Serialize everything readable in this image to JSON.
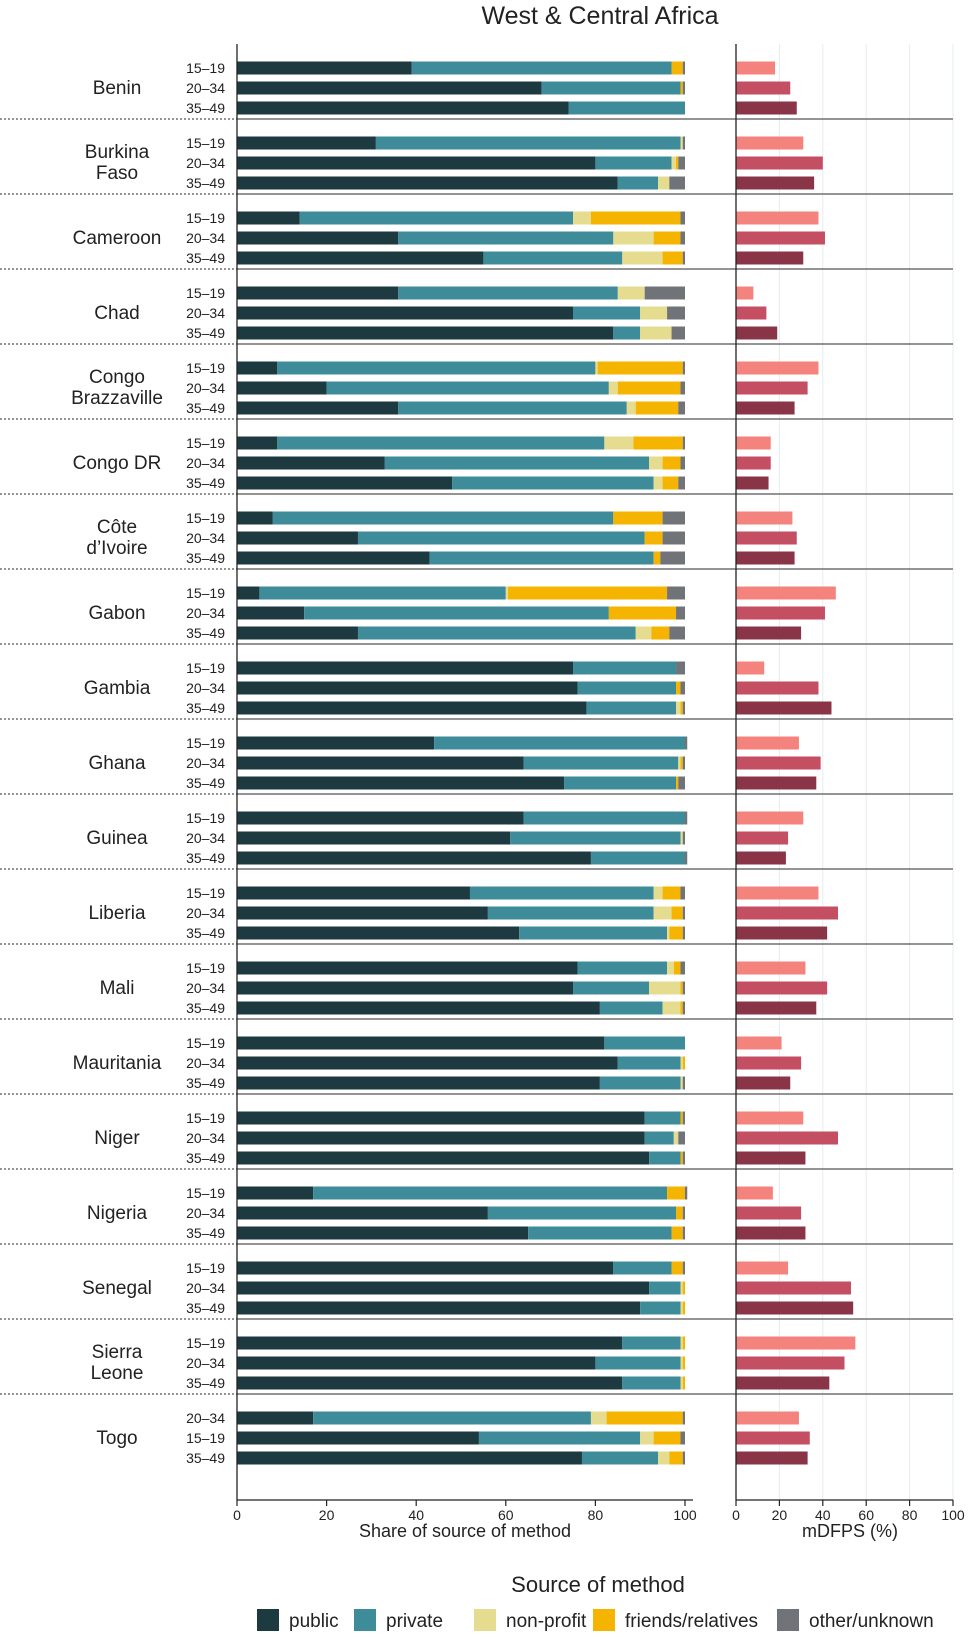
{
  "chart_data": {
    "type": "bar",
    "title": "West & Central Africa",
    "panels": {
      "left": {
        "xlabel": "Share of source of method",
        "xlim": [
          0,
          100
        ],
        "ticks": [
          0,
          20,
          40,
          60,
          80,
          100
        ]
      },
      "right": {
        "xlabel": "mDFPS (%)",
        "xlim": [
          0,
          100
        ],
        "ticks": [
          0,
          20,
          40,
          60,
          80,
          100
        ]
      }
    },
    "legend": {
      "title": "Source of method",
      "placement": "bottom",
      "items": [
        {
          "key": "public",
          "label": "public",
          "color": "#1c3a40"
        },
        {
          "key": "private",
          "label": "private",
          "color": "#3e8c9a"
        },
        {
          "key": "nonprofit",
          "label": "non-profit",
          "color": "#e6dc8f"
        },
        {
          "key": "friends",
          "label": "friends/relatives",
          "color": "#f5b400"
        },
        {
          "key": "other",
          "label": "other/unknown",
          "color": "#707478"
        }
      ]
    },
    "mdfps_colors": [
      "#f4837e",
      "#c44e62",
      "#8a3448"
    ],
    "countries": [
      {
        "name": "Benin",
        "groups": [
          {
            "age": "15–19",
            "public": 39,
            "private": 58,
            "nonprofit": 0,
            "friends": 2.5,
            "other": 0.5,
            "mdfps": 18
          },
          {
            "age": "20–34",
            "public": 68,
            "private": 31,
            "nonprofit": 0,
            "friends": 0.5,
            "other": 0.5,
            "mdfps": 25
          },
          {
            "age": "35–49",
            "public": 74,
            "private": 26,
            "nonprofit": 0,
            "friends": 0,
            "other": 0,
            "mdfps": 28
          }
        ]
      },
      {
        "name": "Burkina Faso",
        "groups": [
          {
            "age": "15–19",
            "public": 31,
            "private": 68,
            "nonprofit": 0.5,
            "friends": 0,
            "other": 0.5,
            "mdfps": 31
          },
          {
            "age": "20–34",
            "public": 80,
            "private": 17,
            "nonprofit": 1,
            "friends": 0.5,
            "other": 1.5,
            "mdfps": 40
          },
          {
            "age": "35–49",
            "public": 85,
            "private": 9,
            "nonprofit": 2.5,
            "friends": 0,
            "other": 3.5,
            "mdfps": 36
          }
        ]
      },
      {
        "name": "Cameroon",
        "groups": [
          {
            "age": "15–19",
            "public": 14,
            "private": 61,
            "nonprofit": 4,
            "friends": 20,
            "other": 1,
            "mdfps": 38
          },
          {
            "age": "20–34",
            "public": 36,
            "private": 48,
            "nonprofit": 9,
            "friends": 6,
            "other": 1,
            "mdfps": 41
          },
          {
            "age": "35–49",
            "public": 55,
            "private": 31,
            "nonprofit": 9,
            "friends": 4.5,
            "other": 0.5,
            "mdfps": 31
          }
        ]
      },
      {
        "name": "Chad",
        "groups": [
          {
            "age": "15–19",
            "public": 36,
            "private": 49,
            "nonprofit": 6,
            "friends": 0,
            "other": 9,
            "mdfps": 8
          },
          {
            "age": "20–34",
            "public": 75,
            "private": 15,
            "nonprofit": 6,
            "friends": 0,
            "other": 4,
            "mdfps": 14
          },
          {
            "age": "35–49",
            "public": 84,
            "private": 6,
            "nonprofit": 7,
            "friends": 0,
            "other": 3,
            "mdfps": 19
          }
        ]
      },
      {
        "name": "Congo Brazzaville",
        "groups": [
          {
            "age": "15–19",
            "public": 9,
            "private": 71,
            "nonprofit": 0.5,
            "friends": 19,
            "other": 0.5,
            "mdfps": 38
          },
          {
            "age": "20–34",
            "public": 20,
            "private": 63,
            "nonprofit": 2,
            "friends": 14,
            "other": 1,
            "mdfps": 33
          },
          {
            "age": "35–49",
            "public": 36,
            "private": 51,
            "nonprofit": 2,
            "friends": 9.5,
            "other": 1.5,
            "mdfps": 27
          }
        ]
      },
      {
        "name": "Congo DR",
        "groups": [
          {
            "age": "15–19",
            "public": 9,
            "private": 73,
            "nonprofit": 6.5,
            "friends": 11,
            "other": 0.5,
            "mdfps": 16
          },
          {
            "age": "20–34",
            "public": 33,
            "private": 59,
            "nonprofit": 3,
            "friends": 4,
            "other": 1,
            "mdfps": 16
          },
          {
            "age": "35–49",
            "public": 48,
            "private": 45,
            "nonprofit": 2,
            "friends": 3.5,
            "other": 1.5,
            "mdfps": 15
          }
        ]
      },
      {
        "name": "Côte d’Ivoire",
        "groups": [
          {
            "age": "15–19",
            "public": 8,
            "private": 76,
            "nonprofit": 0,
            "friends": 11,
            "other": 5,
            "mdfps": 26
          },
          {
            "age": "20–34",
            "public": 27,
            "private": 64,
            "nonprofit": 0,
            "friends": 4,
            "other": 5,
            "mdfps": 28
          },
          {
            "age": "35–49",
            "public": 43,
            "private": 50,
            "nonprofit": 0,
            "friends": 1.5,
            "other": 5.5,
            "mdfps": 27
          }
        ]
      },
      {
        "name": "Gabon",
        "groups": [
          {
            "age": "15–19",
            "public": 5,
            "private": 55,
            "nonprofit": 0.5,
            "friends": 35.5,
            "other": 4,
            "mdfps": 46
          },
          {
            "age": "20–34",
            "public": 15,
            "private": 68,
            "nonprofit": 0,
            "friends": 15,
            "other": 2,
            "mdfps": 41
          },
          {
            "age": "35–49",
            "public": 27,
            "private": 62,
            "nonprofit": 3.5,
            "friends": 4,
            "other": 3.5,
            "mdfps": 30
          }
        ]
      },
      {
        "name": "Gambia",
        "groups": [
          {
            "age": "15–19",
            "public": 75,
            "private": 23,
            "nonprofit": 0,
            "friends": 0,
            "other": 2,
            "mdfps": 13
          },
          {
            "age": "20–34",
            "public": 76,
            "private": 22,
            "nonprofit": 0,
            "friends": 1,
            "other": 1,
            "mdfps": 38
          },
          {
            "age": "35–49",
            "public": 78,
            "private": 20,
            "nonprofit": 1,
            "friends": 0.5,
            "other": 0.5,
            "mdfps": 44
          }
        ]
      },
      {
        "name": "Ghana",
        "groups": [
          {
            "age": "15–19",
            "public": 44,
            "private": 56,
            "nonprofit": 0,
            "friends": 0,
            "other": 0.5,
            "mdfps": 29
          },
          {
            "age": "20–34",
            "public": 64,
            "private": 34.5,
            "nonprofit": 0.5,
            "friends": 0.5,
            "other": 0.5,
            "mdfps": 39
          },
          {
            "age": "35–49",
            "public": 73,
            "private": 25,
            "nonprofit": 0,
            "friends": 0.5,
            "other": 1.5,
            "mdfps": 37
          }
        ]
      },
      {
        "name": "Guinea",
        "groups": [
          {
            "age": "15–19",
            "public": 64,
            "private": 36,
            "nonprofit": 0,
            "friends": 0,
            "other": 0.5,
            "mdfps": 31
          },
          {
            "age": "20–34",
            "public": 61,
            "private": 38,
            "nonprofit": 0.5,
            "friends": 0,
            "other": 0.5,
            "mdfps": 24
          },
          {
            "age": "35–49",
            "public": 79,
            "private": 21,
            "nonprofit": 0,
            "friends": 0,
            "other": 0.5,
            "mdfps": 23
          }
        ]
      },
      {
        "name": "Liberia",
        "groups": [
          {
            "age": "15–19",
            "public": 52,
            "private": 41,
            "nonprofit": 2,
            "friends": 4,
            "other": 1,
            "mdfps": 38
          },
          {
            "age": "20–34",
            "public": 56,
            "private": 37,
            "nonprofit": 4,
            "friends": 2.5,
            "other": 0.5,
            "mdfps": 47
          },
          {
            "age": "35–49",
            "public": 63,
            "private": 33,
            "nonprofit": 0.5,
            "friends": 3,
            "other": 0.5,
            "mdfps": 42
          }
        ]
      },
      {
        "name": "Mali",
        "groups": [
          {
            "age": "15–19",
            "public": 76,
            "private": 20,
            "nonprofit": 1.5,
            "friends": 1.5,
            "other": 1,
            "mdfps": 32
          },
          {
            "age": "20–34",
            "public": 75,
            "private": 17,
            "nonprofit": 7,
            "friends": 0.5,
            "other": 0.5,
            "mdfps": 42
          },
          {
            "age": "35–49",
            "public": 81,
            "private": 14,
            "nonprofit": 4,
            "friends": 0.5,
            "other": 0.5,
            "mdfps": 37
          }
        ]
      },
      {
        "name": "Mauritania",
        "groups": [
          {
            "age": "15–19",
            "public": 82,
            "private": 18,
            "nonprofit": 0,
            "friends": 0,
            "other": 0,
            "mdfps": 21
          },
          {
            "age": "20–34",
            "public": 85,
            "private": 14,
            "nonprofit": 0.5,
            "friends": 0.5,
            "other": 0,
            "mdfps": 30
          },
          {
            "age": "35–49",
            "public": 81,
            "private": 18,
            "nonprofit": 0.5,
            "friends": 0,
            "other": 0.5,
            "mdfps": 25
          }
        ]
      },
      {
        "name": "Niger",
        "groups": [
          {
            "age": "15–19",
            "public": 91,
            "private": 8,
            "nonprofit": 0,
            "friends": 0.5,
            "other": 0.5,
            "mdfps": 31
          },
          {
            "age": "20–34",
            "public": 91,
            "private": 6.5,
            "nonprofit": 1,
            "friends": 0,
            "other": 1.5,
            "mdfps": 47
          },
          {
            "age": "35–49",
            "public": 92,
            "private": 7,
            "nonprofit": 0,
            "friends": 0.5,
            "other": 0.5,
            "mdfps": 32
          }
        ]
      },
      {
        "name": "Nigeria",
        "groups": [
          {
            "age": "15–19",
            "public": 17,
            "private": 79,
            "nonprofit": 0,
            "friends": 4,
            "other": 0.5,
            "mdfps": 17
          },
          {
            "age": "20–34",
            "public": 56,
            "private": 42,
            "nonprofit": 0,
            "friends": 1.5,
            "other": 0.5,
            "mdfps": 30
          },
          {
            "age": "35–49",
            "public": 65,
            "private": 32,
            "nonprofit": 0,
            "friends": 2.5,
            "other": 0.5,
            "mdfps": 32
          }
        ]
      },
      {
        "name": "Senegal",
        "groups": [
          {
            "age": "15–19",
            "public": 84,
            "private": 13,
            "nonprofit": 0,
            "friends": 2.5,
            "other": 0.5,
            "mdfps": 24
          },
          {
            "age": "20–34",
            "public": 92,
            "private": 7,
            "nonprofit": 0.5,
            "friends": 0.5,
            "other": 0,
            "mdfps": 53
          },
          {
            "age": "35–49",
            "public": 90,
            "private": 9,
            "nonprofit": 0.5,
            "friends": 0.5,
            "other": 0,
            "mdfps": 54
          }
        ]
      },
      {
        "name": "Sierra Leone",
        "groups": [
          {
            "age": "15–19",
            "public": 86,
            "private": 13,
            "nonprofit": 0.5,
            "friends": 0.5,
            "other": 0,
            "mdfps": 55
          },
          {
            "age": "20–34",
            "public": 80,
            "private": 19,
            "nonprofit": 0.5,
            "friends": 0.5,
            "other": 0,
            "mdfps": 50
          },
          {
            "age": "35–49",
            "public": 86,
            "private": 13,
            "nonprofit": 0.5,
            "friends": 0.5,
            "other": 0,
            "mdfps": 43
          }
        ]
      },
      {
        "name": "Togo",
        "groups": [
          {
            "age": "20–34",
            "public": 17,
            "private": 62,
            "nonprofit": 3.5,
            "friends": 17,
            "other": 0.5,
            "mdfps": 29
          },
          {
            "age": "15–19",
            "public": 54,
            "private": 36,
            "nonprofit": 3,
            "friends": 6,
            "other": 1,
            "mdfps": 34
          },
          {
            "age": "35–49",
            "public": 77,
            "private": 17,
            "nonprofit": 2.5,
            "friends": 3,
            "other": 0.5,
            "mdfps": 33
          }
        ]
      }
    ]
  }
}
